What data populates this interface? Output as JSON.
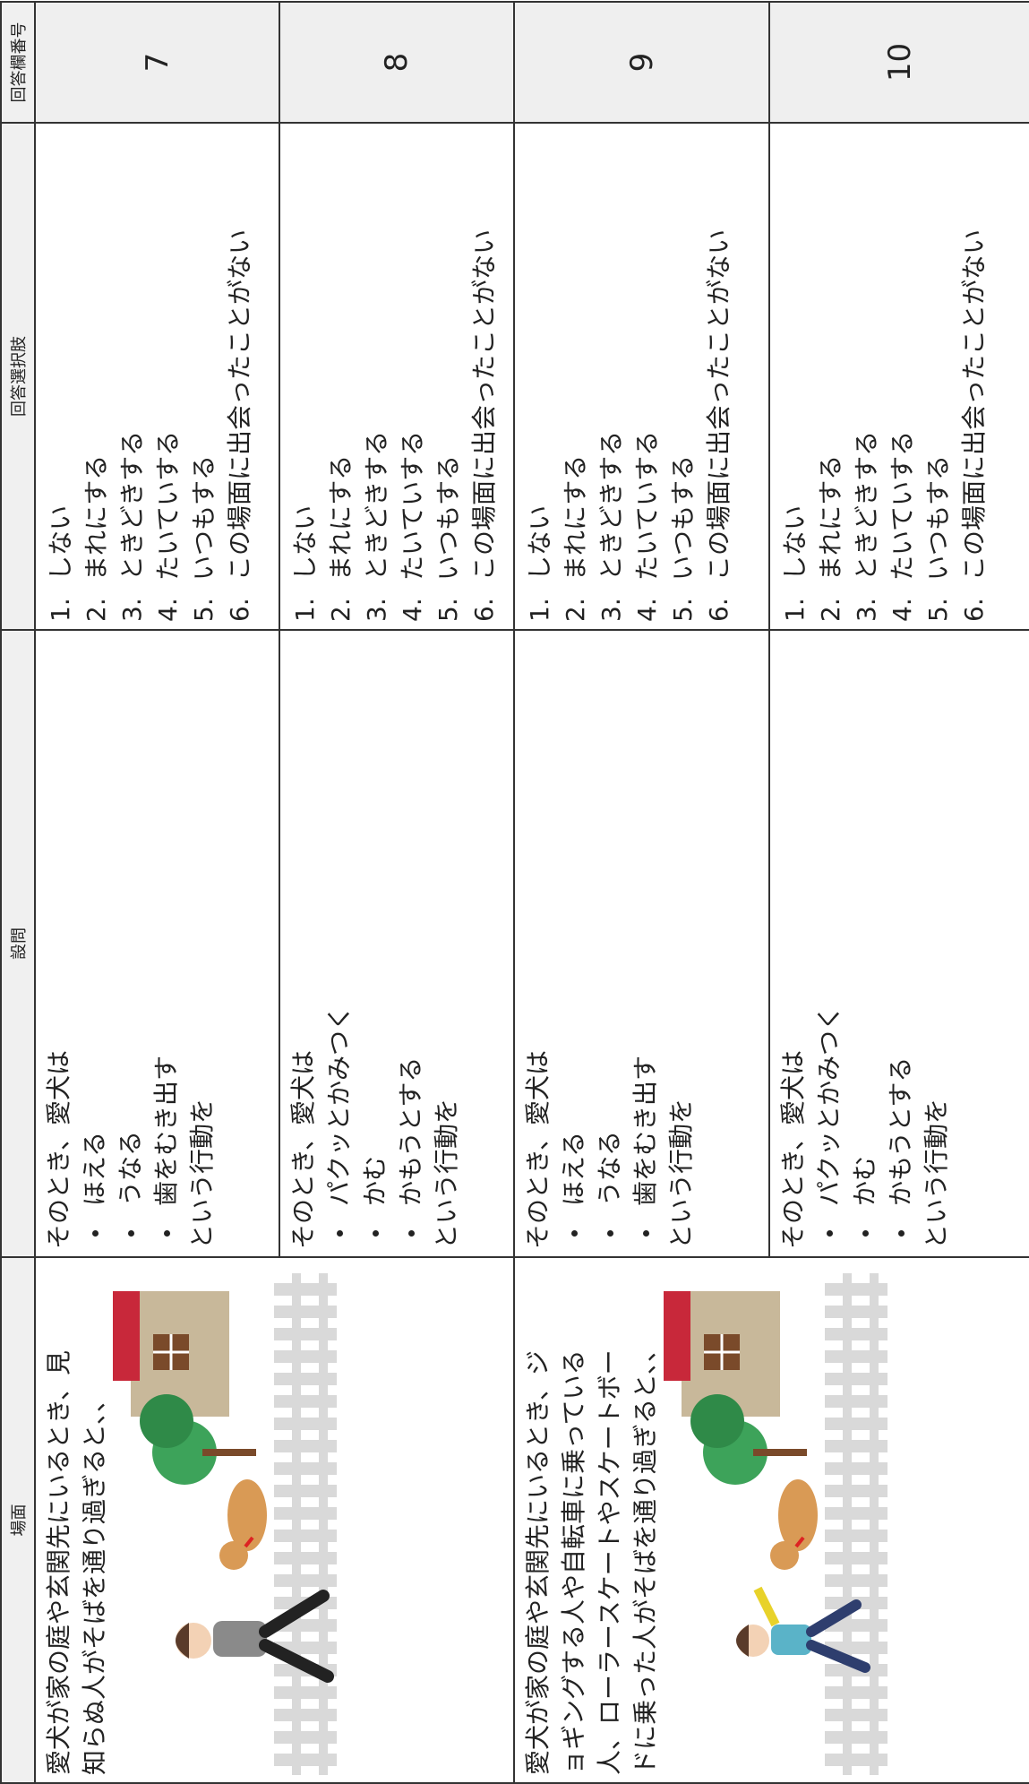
{
  "header": {
    "scene": "場面",
    "question": "設問",
    "choices": "回答選択肢",
    "number": "回答欄番号"
  },
  "scenes": [
    {
      "text": [
        "愛犬が家の庭や玄関先にいるとき、見",
        "知らぬ人がそばを通り過ぎると、、"
      ],
      "rows": [
        {
          "intro": "そのとき、愛犬は",
          "items": [
            "ほえる",
            "うなる",
            "歯をむき出す"
          ],
          "outro": "という行動を",
          "choices": [
            "1.",
            "しない",
            "2.",
            "まれにする",
            "3.",
            "ときどきする",
            "4.",
            "たいていする",
            "5.",
            "いつもする",
            "6.",
            "この場面に出会ったことがない"
          ],
          "number": "7"
        },
        {
          "intro": "そのとき、愛犬は",
          "items": [
            "パクッとかみつく",
            "かむ",
            "かもうとする"
          ],
          "outro": "という行動を",
          "choices": [
            "1.",
            "しない",
            "2.",
            "まれにする",
            "3.",
            "ときどきする",
            "4.",
            "たいていする",
            "5.",
            "いつもする",
            "6.",
            "この場面に出会ったことがない"
          ],
          "number": "8"
        }
      ]
    },
    {
      "text": [
        "愛犬が家の庭や玄関先にいるとき、ジ",
        "ョギングする人や自転車に乗っている",
        "人、ローラースケートやスケートボー",
        "ドに乗った人がそばを通り過ぎると、、"
      ],
      "rows": [
        {
          "intro": "そのとき、愛犬は",
          "items": [
            "ほえる",
            "うなる",
            "歯をむき出す"
          ],
          "outro": "という行動を",
          "choices": [
            "1.",
            "しない",
            "2.",
            "まれにする",
            "3.",
            "ときどきする",
            "4.",
            "たいていする",
            "5.",
            "いつもする",
            "6.",
            "この場面に出会ったことがない"
          ],
          "number": "9"
        },
        {
          "intro": "そのとき、愛犬は",
          "items": [
            "パクッとかみつく",
            "かむ",
            "かもうとする"
          ],
          "outro": "という行動を",
          "choices": [
            "1.",
            "しない",
            "2.",
            "まれにする",
            "3.",
            "ときどきする",
            "4.",
            "たいていする",
            "5.",
            "いつもする",
            "6.",
            "この場面に出会ったことがない"
          ],
          "number": "10"
        }
      ]
    }
  ]
}
